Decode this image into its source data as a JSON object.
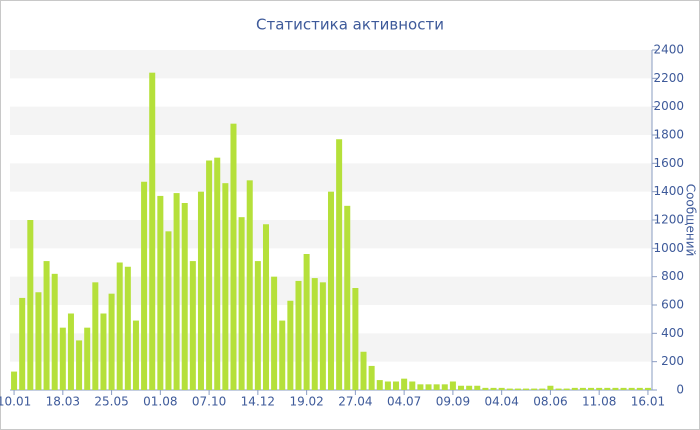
{
  "chart_data": {
    "type": "bar",
    "title": "Статистика активности",
    "y_label": "Сообщений",
    "categories": [
      "10.01",
      null,
      null,
      null,
      null,
      null,
      "18.03",
      null,
      null,
      null,
      null,
      null,
      "25.05",
      null,
      null,
      null,
      null,
      null,
      "01.08",
      null,
      null,
      null,
      null,
      null,
      "07.10",
      null,
      null,
      null,
      null,
      null,
      "14.12",
      null,
      null,
      null,
      null,
      null,
      "19.02",
      null,
      null,
      null,
      null,
      null,
      "27.04",
      null,
      null,
      null,
      null,
      null,
      "04.07",
      null,
      null,
      null,
      null,
      null,
      "09.09",
      null,
      null,
      null,
      null,
      null,
      "04.04",
      null,
      null,
      null,
      null,
      null,
      "08.06",
      null,
      null,
      null,
      null,
      null,
      "11.08",
      null,
      null,
      null,
      null,
      null,
      "16.01"
    ],
    "values": [
      130,
      650,
      1200,
      690,
      910,
      820,
      440,
      540,
      350,
      440,
      760,
      540,
      680,
      900,
      870,
      490,
      1470,
      2240,
      1370,
      1120,
      1390,
      1320,
      910,
      1400,
      1620,
      1640,
      1460,
      1880,
      1220,
      1480,
      910,
      1170,
      800,
      490,
      630,
      770,
      960,
      790,
      760,
      1400,
      1770,
      1300,
      720,
      270,
      170,
      70,
      60,
      60,
      80,
      60,
      40,
      40,
      40,
      40,
      60,
      30,
      30,
      30,
      15,
      15,
      15,
      10,
      10,
      10,
      10,
      10,
      30,
      10,
      10,
      15,
      15,
      15,
      15,
      15,
      15,
      15,
      15,
      15,
      15
    ],
    "color": "#b5e03a",
    "ylim": [
      0,
      2400
    ],
    "yticks": [
      0,
      200,
      400,
      600,
      800,
      1000,
      1200,
      1400,
      1600,
      1800,
      2000,
      2200,
      2400
    ],
    "grid": true
  }
}
